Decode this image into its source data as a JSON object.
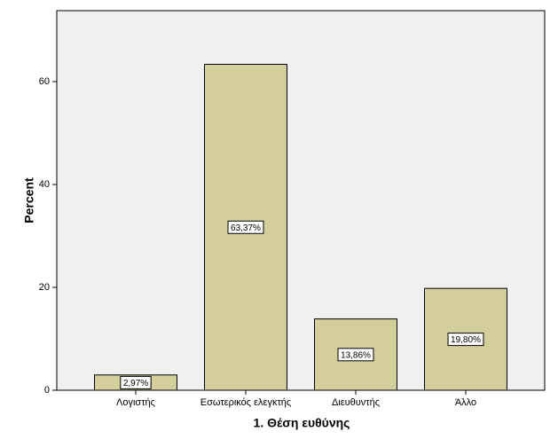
{
  "chart_data": {
    "type": "bar",
    "x_label": "1. Θέση ευθύνης",
    "y_label": "Percent",
    "categories": [
      "Λογιστής",
      "Εσωτερικός ελεγκτής",
      "Διευθυντής",
      "Άλλο"
    ],
    "values": [
      2.97,
      63.37,
      13.86,
      19.8
    ],
    "value_labels": [
      "2,97%",
      "63,37%",
      "13,86%",
      "19,80%"
    ],
    "color": "#d3ce9b",
    "ylim": [
      0,
      73.8
    ],
    "yticks": [
      0,
      20,
      40,
      60
    ],
    "grid": false
  }
}
